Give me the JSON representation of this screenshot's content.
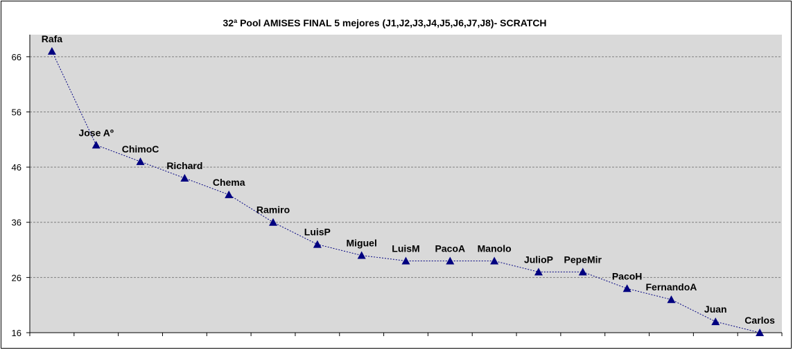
{
  "chart_data": {
    "type": "line",
    "title": "32ª Pool AMISES FINAL 5 mejores (J1,J2,J3,J4,J5,J6,J7,J8)-  SCRATCH",
    "xlabel": "",
    "ylabel": "",
    "ylim": [
      16,
      70
    ],
    "yticks": [
      16,
      26,
      36,
      46,
      56,
      66
    ],
    "grid": "horizontal-dashed",
    "legend": "none",
    "categories": [
      "Rafa",
      "Jose Aº",
      "ChimoC",
      "Richard",
      "Chema",
      "Ramiro",
      "LuisP",
      "Miguel",
      "LuisM",
      "PacoA",
      "Manolo",
      "JulioP",
      "PepeMir",
      "PacoH",
      "FernandoA",
      "Juan",
      "Carlos"
    ],
    "series": [
      {
        "values": [
          67,
          50,
          47,
          44,
          41,
          36,
          32,
          30,
          29,
          29,
          29,
          27,
          27,
          24,
          22,
          18,
          16
        ],
        "color": "#000080",
        "marker": "triangle",
        "line_style": "dotted"
      }
    ],
    "colors": {
      "plot_background": "#d9d9d9",
      "gridline": "#808080",
      "series": "#000080"
    }
  }
}
